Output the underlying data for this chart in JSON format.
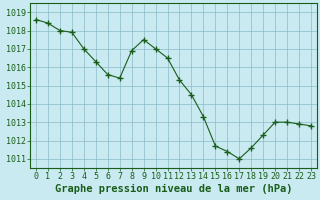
{
  "x": [
    0,
    1,
    2,
    3,
    4,
    5,
    6,
    7,
    8,
    9,
    10,
    11,
    12,
    13,
    14,
    15,
    16,
    17,
    18,
    19,
    20,
    21,
    22,
    23
  ],
  "y": [
    1018.6,
    1018.4,
    1018.0,
    1017.9,
    1017.0,
    1016.3,
    1015.6,
    1015.4,
    1016.9,
    1017.5,
    1017.0,
    1016.5,
    1015.3,
    1014.5,
    1013.3,
    1011.7,
    1011.4,
    1011.0,
    1011.6,
    1012.3,
    1013.0,
    1013.0,
    1012.9,
    1012.8
  ],
  "line_color": "#1a5c1a",
  "marker_color": "#1a5c1a",
  "bg_color": "#c8eaf0",
  "grid_color": "#8bbcca",
  "label_color": "#1a5c1a",
  "title": "Graphe pression niveau de la mer (hPa)",
  "ylim_min": 1010.5,
  "ylim_max": 1019.5,
  "yticks": [
    1011,
    1012,
    1013,
    1014,
    1015,
    1016,
    1017,
    1018,
    1019
  ],
  "xticks": [
    0,
    1,
    2,
    3,
    4,
    5,
    6,
    7,
    8,
    9,
    10,
    11,
    12,
    13,
    14,
    15,
    16,
    17,
    18,
    19,
    20,
    21,
    22,
    23
  ],
  "tick_fontsize": 6.0,
  "title_fontsize": 7.5
}
